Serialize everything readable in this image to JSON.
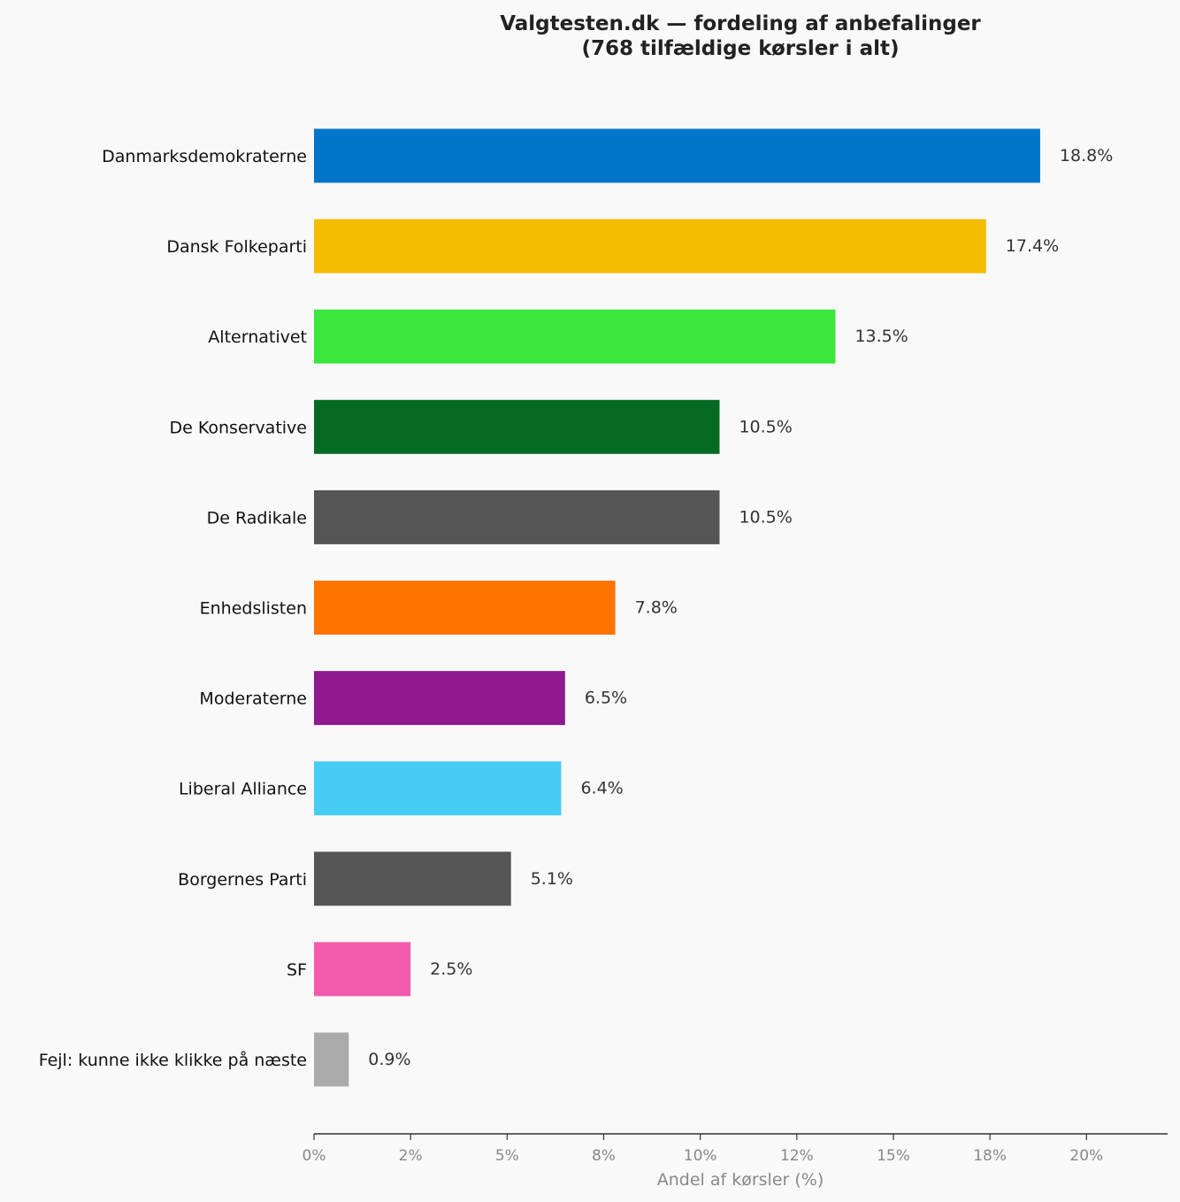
{
  "chart_data": {
    "type": "bar",
    "orientation": "horizontal",
    "title": "Valgtesten.dk — fordeling af anbefalinger",
    "subtitle": "(768 tilfældige kørsler i alt)",
    "xlabel": "Andel af kørsler (%)",
    "ylabel": "",
    "xlim": [
      0,
      22.1
    ],
    "grid": false,
    "ticks": [
      {
        "value": 0,
        "label": "0%"
      },
      {
        "value": 2.5,
        "label": "2%"
      },
      {
        "value": 5,
        "label": "5%"
      },
      {
        "value": 7.5,
        "label": "8%"
      },
      {
        "value": 10,
        "label": "10%"
      },
      {
        "value": 12.5,
        "label": "12%"
      },
      {
        "value": 15,
        "label": "15%"
      },
      {
        "value": 17.5,
        "label": "18%"
      },
      {
        "value": 20,
        "label": "20%"
      }
    ],
    "categories": [
      "Danmarksdemokraterne",
      "Dansk Folkeparti",
      "Alternativet",
      "De Konservative",
      "De Radikale",
      "Enhedslisten",
      "Moderaterne",
      "Liberal Alliance",
      "Borgernes Parti",
      "SF",
      "Fejl: kunne ikke klikke på næste"
    ],
    "values": [
      18.8,
      17.4,
      13.5,
      10.5,
      10.5,
      7.8,
      6.5,
      6.4,
      5.1,
      2.5,
      0.9
    ],
    "value_labels": [
      "18.8%",
      "17.4%",
      "13.5%",
      "10.5%",
      "10.5%",
      "7.8%",
      "6.5%",
      "6.4%",
      "5.1%",
      "2.5%",
      "0.9%"
    ],
    "colors": [
      "#0075c9",
      "#f5bc00",
      "#3de63d",
      "#076a22",
      "#555555",
      "#ff7300",
      "#901890",
      "#47cdf3",
      "#555555",
      "#f25aab",
      "#aaaaaa"
    ]
  }
}
